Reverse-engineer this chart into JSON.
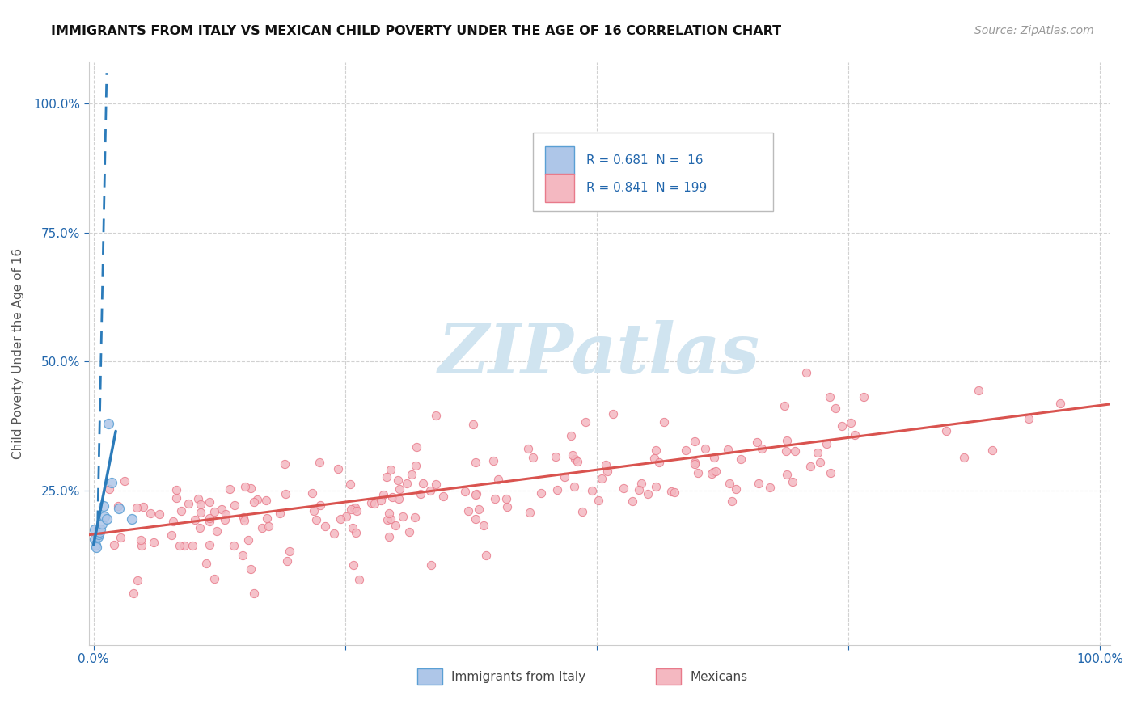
{
  "title": "IMMIGRANTS FROM ITALY VS MEXICAN CHILD POVERTY UNDER THE AGE OF 16 CORRELATION CHART",
  "source": "Source: ZipAtlas.com",
  "ylabel": "Child Poverty Under the Age of 16",
  "italy_color": "#aec6e8",
  "italian_edge_color": "#5a9fd4",
  "mexican_color": "#f4b8c1",
  "mexican_edge_color": "#e87a8a",
  "italy_line_color": "#2b7bba",
  "mexican_line_color": "#d9534f",
  "legend_italy_fill": "#aec6e8",
  "legend_italian_edge": "#5a9fd4",
  "legend_mexican_fill": "#f4b8c1",
  "legend_mexican_edge": "#e87a8a",
  "legend_text_color": "#2166ac",
  "watermark_color": "#d0e4f0",
  "italy_R": "0.681",
  "italy_N": "16",
  "mexican_R": "0.841",
  "mexican_N": "199",
  "label_italy": "Immigrants from Italy",
  "label_mexican": "Mexicans",
  "xticks": [
    0.0,
    0.25,
    0.5,
    0.75,
    1.0
  ],
  "xtick_labels": [
    "0.0%",
    "",
    "",
    "",
    "100.0%"
  ],
  "yticks": [
    0.25,
    0.5,
    0.75,
    1.0
  ],
  "ytick_labels": [
    "25.0%",
    "50.0%",
    "75.0%",
    "100.0%"
  ],
  "xlim": [
    -0.005,
    1.01
  ],
  "ylim": [
    -0.05,
    1.08
  ],
  "grid_color": "#cccccc",
  "spine_color": "#cccccc"
}
